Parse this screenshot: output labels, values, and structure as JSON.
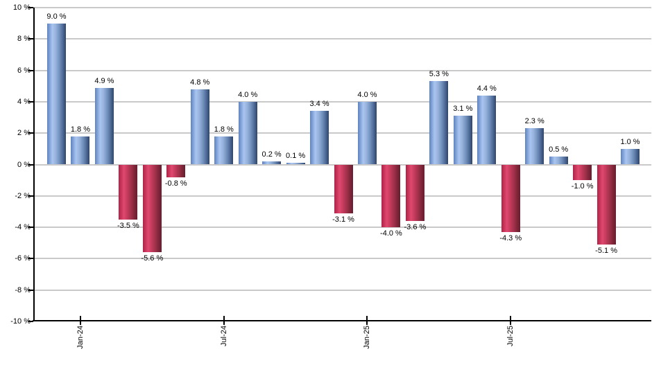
{
  "chart_data": {
    "type": "bar",
    "title": "",
    "xlabel": "",
    "ylabel": "",
    "ylim": [
      -10,
      10
    ],
    "grid": true,
    "values": [
      9.0,
      1.8,
      4.9,
      -3.5,
      -5.6,
      -0.8,
      4.8,
      1.8,
      4.0,
      0.2,
      0.1,
      3.4,
      -3.1,
      4.0,
      -4.0,
      -3.6,
      5.3,
      3.1,
      4.4,
      -4.3,
      2.3,
      0.5,
      -1.0,
      -5.1,
      1.0
    ],
    "bar_labels": [
      "9.0 %",
      "1.8 %",
      "4.9 %",
      "-3.5 %",
      "-5.6 %",
      "-0.8 %",
      "4.8 %",
      "1.8 %",
      "4.0 %",
      "0.2 %",
      "0.1 %",
      "3.4 %",
      "-3.1 %",
      "4.0 %",
      "-4.0 %",
      "-3.6 %",
      "5.3 %",
      "3.1 %",
      "4.4 %",
      "-4.3 %",
      "2.3 %",
      "0.5 %",
      "-1.0 %",
      "-5.1 %",
      "1.0 %"
    ],
    "y_ticks": [
      {
        "value": 10,
        "label": "10 %"
      },
      {
        "value": 8,
        "label": "8 %"
      },
      {
        "value": 6,
        "label": "6 %"
      },
      {
        "value": 4,
        "label": "4 %"
      },
      {
        "value": 2,
        "label": "2 %"
      },
      {
        "value": 0,
        "label": "0 %"
      },
      {
        "value": -2,
        "label": "-2 %"
      },
      {
        "value": -4,
        "label": "-4 %"
      },
      {
        "value": -6,
        "label": "-6 %"
      },
      {
        "value": -8,
        "label": "-8 %"
      },
      {
        "value": -10,
        "label": "-10 %"
      }
    ],
    "x_ticks": [
      {
        "label": "Jan-24",
        "bar_index": 1
      },
      {
        "label": "Jul-24",
        "bar_index": 7
      },
      {
        "label": "Jan-25",
        "bar_index": 13
      },
      {
        "label": "Jul-25",
        "bar_index": 19
      }
    ],
    "colors": {
      "positive_gradient_stops": [
        "#5F83C0",
        "#A9C5F0",
        "#93AFDA",
        "#6E8CB8",
        "#4C6794",
        "#2F4569"
      ],
      "negative_gradient_stops": [
        "#AE2346",
        "#E0486F",
        "#C23A5B",
        "#9E3049",
        "#7E2539",
        "#671D2F"
      ],
      "gradient_positions": [
        0,
        28,
        48,
        68,
        85,
        100
      ],
      "gridline": "#C9C9C9",
      "axis": "#000000",
      "text": "#000000",
      "background": "#FFFFFF"
    },
    "legend": null
  }
}
